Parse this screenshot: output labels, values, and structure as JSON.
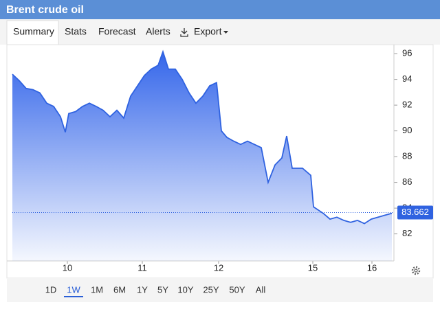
{
  "header": {
    "title": "Brent crude oil"
  },
  "tabs": [
    "Summary",
    "Stats",
    "Forecast",
    "Alerts",
    "Export"
  ],
  "ranges": [
    "1D",
    "1W",
    "1M",
    "6M",
    "1Y",
    "5Y",
    "10Y",
    "25Y",
    "50Y",
    "All"
  ],
  "selected_range": 1,
  "chart_data": {
    "type": "area",
    "x": [
      0,
      2,
      4,
      6,
      8,
      10,
      12,
      14,
      15.4,
      16.4,
      18.4,
      20.4,
      22.4,
      24.4,
      26.4,
      28.4,
      30.4,
      32.4,
      34.4,
      36.4,
      38.4,
      40.4,
      42.4,
      43.8,
      45.4,
      47.4,
      49.4,
      51.4,
      53.4,
      55.4,
      57.4,
      59.4,
      60.8,
      62.4,
      64.4,
      66.4,
      68.4,
      70.4,
      72.4,
      74.4,
      76.4,
      78.4,
      79.8,
      81.4,
      84.4,
      86.8,
      87.6,
      90.4,
      92.4,
      94.4,
      96.4,
      98.4,
      100.4,
      102.4,
      104.4,
      106.4,
      108.4,
      110.4
    ],
    "values": [
      94.4,
      93.9,
      93.3,
      93.2,
      92.95,
      92.15,
      91.9,
      91.1,
      89.9,
      91.35,
      91.5,
      91.9,
      92.15,
      91.9,
      91.6,
      91.1,
      91.6,
      91.0,
      92.7,
      93.5,
      94.3,
      94.8,
      95.1,
      96.15,
      94.8,
      94.8,
      94.0,
      92.95,
      92.15,
      92.7,
      93.5,
      93.75,
      90.0,
      89.5,
      89.2,
      88.95,
      89.2,
      88.95,
      88.7,
      86.0,
      87.35,
      87.9,
      89.6,
      87.1,
      87.1,
      86.55,
      84.1,
      83.6,
      83.15,
      83.3,
      83.05,
      82.9,
      83.05,
      82.8,
      83.15,
      83.3,
      83.45,
      83.6
    ],
    "color": "#2f62e0",
    "last_value": 83.662,
    "xlim": [
      0,
      111
    ],
    "xticks": [
      {
        "value": 16,
        "label": "10"
      },
      {
        "value": 37.8,
        "label": "11"
      },
      {
        "value": 60,
        "label": "12"
      },
      {
        "value": 87.4,
        "label": "15"
      },
      {
        "value": 104.6,
        "label": "16"
      }
    ],
    "ylim": [
      79.9,
      96.7
    ],
    "yticks": [
      82,
      84,
      86,
      88,
      90,
      92,
      94,
      96
    ]
  }
}
